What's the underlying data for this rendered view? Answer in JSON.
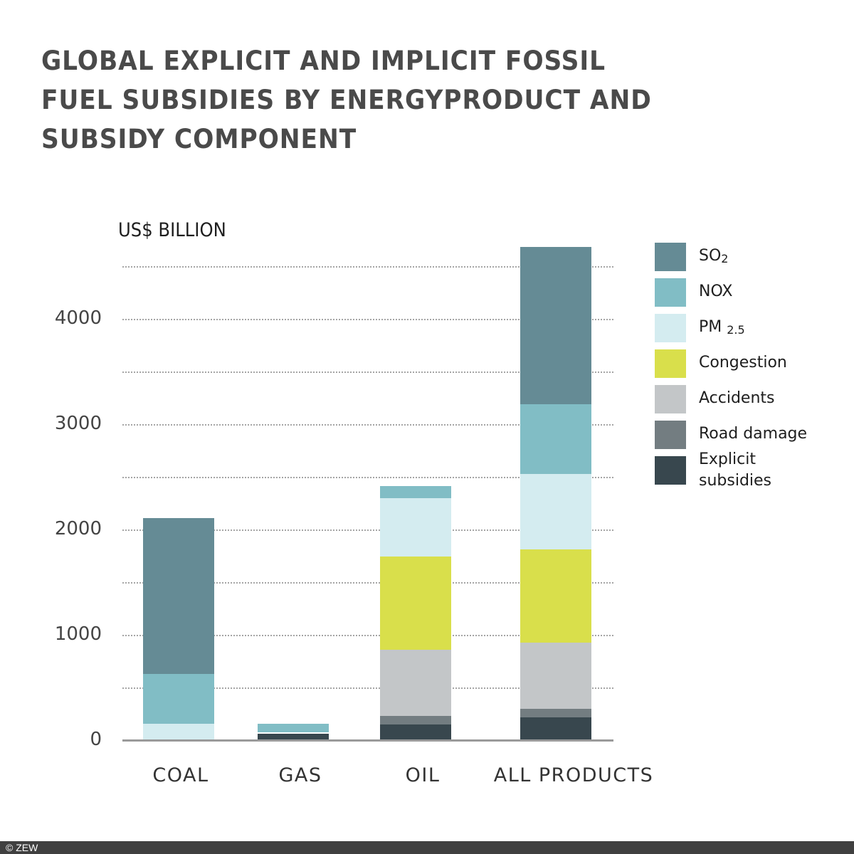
{
  "title": {
    "lines": [
      "GLOBAL EXPLICIT AND IMPLICIT FOSSIL",
      "FUEL SUBSIDIES BY ENERGYPRODUCT AND",
      "SUBSIDY COMPONENT"
    ]
  },
  "y_axis": {
    "unit_label": "US$ BILLION",
    "ticks": [
      "4000",
      "3000",
      "2000",
      "1000",
      "0"
    ]
  },
  "x_axis": {
    "labels": [
      "COAL",
      "GAS",
      "OIL",
      "ALL PRODUCTS"
    ]
  },
  "legend": [
    {
      "label": "SO",
      "sub": "2",
      "color": "#658b95"
    },
    {
      "label": "NOX",
      "sub": "",
      "color": "#81bdc5"
    },
    {
      "label": "PM",
      "sub": "2.5",
      "color": "#d4ecf0"
    },
    {
      "label": "Congestion",
      "sub": "",
      "color": "#d9df4b"
    },
    {
      "label": "Accidents",
      "sub": "",
      "color": "#c3c6c8"
    },
    {
      "label": "Road damage",
      "sub": "",
      "color": "#737d81"
    },
    {
      "label": "Explicit subsidies",
      "sub": "",
      "color": "#38474e"
    }
  ],
  "footer": {
    "copyright": "© ZEW"
  },
  "chart_data": {
    "type": "bar",
    "stacked": true,
    "title": "Global explicit and implicit fossil fuel subsidies by energyproduct and subsidy component",
    "xlabel": "",
    "ylabel": "US$ billion",
    "ylim": [
      0,
      4700
    ],
    "yticks": [
      0,
      1000,
      2000,
      3000,
      4000
    ],
    "grid": "dotted horizontal every 500",
    "legend_position": "right",
    "categories": [
      "COAL",
      "GAS",
      "OIL",
      "ALL PRODUCTS"
    ],
    "series": [
      {
        "name": "Explicit subsidies",
        "color": "#38474e",
        "values": [
          0,
          60,
          150,
          216
        ]
      },
      {
        "name": "Road damage",
        "color": "#737d81",
        "values": [
          0,
          0,
          80,
          81
        ]
      },
      {
        "name": "Accidents",
        "color": "#c3c6c8",
        "values": [
          0,
          0,
          628,
          629
        ]
      },
      {
        "name": "Congestion",
        "color": "#d9df4b",
        "values": [
          0,
          0,
          885,
          885
        ]
      },
      {
        "name": "PM2.5",
        "color": "#d4ecf0",
        "values": [
          155,
          0,
          554,
          716
        ]
      },
      {
        "name": "NOX",
        "color": "#81bdc5",
        "values": [
          473,
          95,
          115,
          662
        ]
      },
      {
        "name": "SO2",
        "color": "#658b95",
        "values": [
          1480,
          0,
          0,
          1493
        ]
      }
    ],
    "totals": [
      2108,
      155,
      2412,
      4682
    ]
  }
}
